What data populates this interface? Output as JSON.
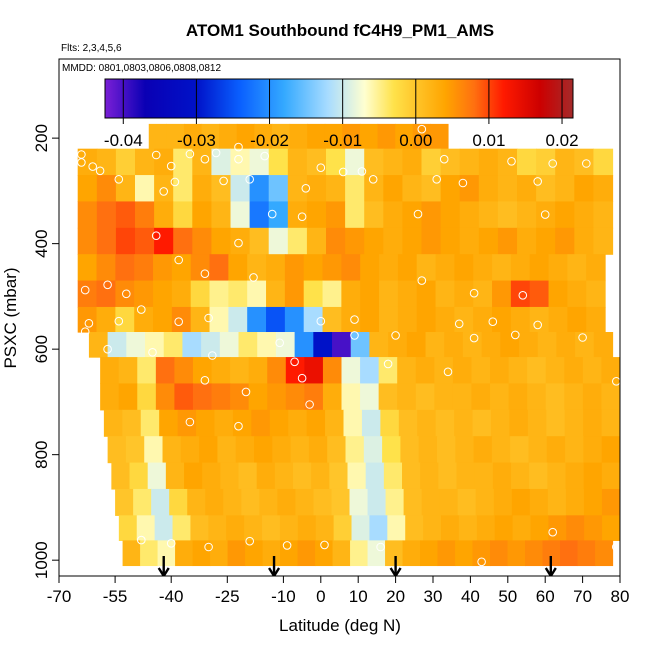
{
  "chart_data": {
    "type": "heatmap",
    "title": "ATOM1 Southbound fC4H9_PM1_AMS",
    "subtitle_flights": "Flts: 2,3,4,5,6",
    "subtitle_dates": "MMDD: 0801,0803,0806,0808,0812",
    "xlabel": "Latitude (deg N)",
    "ylabel": "PSXC (mbar)",
    "xlim": [
      -70,
      80
    ],
    "ylim": [
      1030,
      50
    ],
    "x_ticks": [
      -70,
      -55,
      -40,
      -25,
      -10,
      0,
      10,
      20,
      30,
      40,
      50,
      60,
      70,
      80
    ],
    "x_tick_labels": [
      "-70",
      "-55",
      "-40",
      "-25",
      "-10",
      "0",
      "10",
      "20",
      "30",
      "40",
      "50",
      "60",
      "70",
      "80"
    ],
    "y_ticks": [
      200,
      400,
      600,
      800,
      1000
    ],
    "y_tick_labels": [
      "200",
      "400",
      "600",
      "800",
      "1000"
    ],
    "colorbar": {
      "min": -0.0425,
      "max": 0.0215,
      "ticks": [
        -0.04,
        -0.03,
        -0.02,
        -0.01,
        0.0,
        0.01,
        0.02
      ],
      "tick_labels": [
        "-0.04",
        "-0.03",
        "-0.02",
        "-0.01",
        "0.00",
        "0.01",
        "0.02"
      ],
      "stops": [
        {
          "v": -0.0425,
          "c": "#7a1fd6"
        },
        {
          "v": -0.037,
          "c": "#0a00b4"
        },
        {
          "v": -0.03,
          "c": "#0012c8"
        },
        {
          "v": -0.024,
          "c": "#0a60ff"
        },
        {
          "v": -0.018,
          "c": "#34a9ff"
        },
        {
          "v": -0.012,
          "c": "#a8dcff"
        },
        {
          "v": -0.007,
          "c": "#ffffd0"
        },
        {
          "v": -0.003,
          "c": "#ffe24a"
        },
        {
          "v": 0.0,
          "c": "#ffc52a"
        },
        {
          "v": 0.004,
          "c": "#ffa500"
        },
        {
          "v": 0.008,
          "c": "#ff7010"
        },
        {
          "v": 0.012,
          "c": "#ff1a00"
        },
        {
          "v": 0.017,
          "c": "#cc0000"
        },
        {
          "v": 0.0215,
          "c": "#a52a2a"
        }
      ]
    },
    "arrow_latitudes": [
      -42,
      -12.5,
      20,
      61.5
    ],
    "layers": [
      {
        "p": 195,
        "lat0": -46,
        "lat1": 34,
        "v": [
          0.002,
          0.002,
          0.003,
          0.002,
          0.003,
          0.004,
          0.003,
          0.002,
          0.003,
          0.004,
          0.004,
          0.005,
          0.004,
          0.005,
          0.004,
          0.005,
          0.005
        ]
      },
      {
        "p": 245,
        "lat0": -65,
        "lat1": 78,
        "v": [
          0.003,
          0.002,
          -0.001,
          0.002,
          0.003,
          -0.004,
          0.002,
          -0.009,
          -0.006,
          -0.008,
          -0.003,
          0.002,
          0.001,
          -0.003,
          -0.008,
          0.001,
          0.002,
          0.003,
          -0.001,
          0.001,
          0.002,
          0.003,
          0.002,
          -0.002,
          -0.001,
          0.002,
          0.001,
          -0.002
        ]
      },
      {
        "p": 295,
        "lat0": -65,
        "lat1": 78,
        "v": [
          0.004,
          0.006,
          0.002,
          -0.006,
          0.002,
          -0.004,
          0.003,
          0.001,
          -0.01,
          -0.02,
          -0.015,
          0.002,
          0.003,
          0.002,
          -0.004,
          0.002,
          0.004,
          0.002,
          0.001,
          0.004,
          0.005,
          0.003,
          0.002,
          0.003,
          0.001,
          0.002,
          0.004,
          0.003
        ]
      },
      {
        "p": 345,
        "lat0": -65,
        "lat1": 78,
        "v": [
          0.006,
          0.008,
          0.009,
          0.007,
          0.003,
          -0.002,
          0.004,
          0.002,
          -0.008,
          -0.022,
          -0.018,
          0.003,
          0.004,
          0.005,
          -0.004,
          0.001,
          0.003,
          0.004,
          0.005,
          0.004,
          0.003,
          0.002,
          0.001,
          0.002,
          0.003,
          0.004,
          0.003,
          0.002
        ]
      },
      {
        "p": 395,
        "lat0": -65,
        "lat1": 78,
        "v": [
          0.006,
          0.008,
          0.01,
          0.009,
          0.012,
          0.008,
          0.006,
          0.004,
          0.003,
          0.001,
          -0.008,
          -0.004,
          0.002,
          0.006,
          0.005,
          0.004,
          0.003,
          0.004,
          0.005,
          0.004,
          0.003,
          0.004,
          0.005,
          0.003,
          0.004,
          0.005,
          0.003,
          0.002
        ]
      },
      {
        "p": 445,
        "lat0": -65,
        "lat1": 76,
        "v": [
          0.004,
          0.006,
          0.008,
          0.007,
          0.005,
          0.004,
          0.006,
          0.008,
          0.004,
          0.002,
          0.003,
          0.005,
          0.004,
          0.005,
          0.006,
          0.004,
          0.003,
          0.004,
          0.002,
          0.003,
          0.004,
          0.003,
          0.002,
          0.003,
          0.004,
          0.003,
          0.002,
          0.003
        ]
      },
      {
        "p": 495,
        "lat0": -65,
        "lat1": 76,
        "v": [
          0.007,
          0.008,
          0.006,
          0.005,
          0.004,
          0.003,
          -0.002,
          -0.005,
          -0.004,
          -0.006,
          0.002,
          0.005,
          -0.003,
          -0.005,
          0.003,
          0.004,
          0.002,
          0.003,
          0.004,
          0.002,
          0.003,
          0.002,
          0.005,
          0.01,
          0.009,
          0.004,
          0.003,
          0.002
        ]
      },
      {
        "p": 545,
        "lat0": -65,
        "lat1": 76,
        "v": [
          0.005,
          0.003,
          -0.002,
          0.003,
          0.004,
          0.006,
          0.002,
          -0.006,
          -0.01,
          -0.02,
          -0.025,
          -0.02,
          -0.012,
          0.001,
          0.003,
          0.004,
          0.002,
          0.003,
          0.004,
          0.003,
          0.002,
          0.003,
          0.004,
          0.003,
          0.002,
          0.003,
          0.004,
          0.003
        ]
      },
      {
        "p": 590,
        "lat0": -62,
        "lat1": 78,
        "v": [
          0.002,
          -0.01,
          -0.008,
          -0.006,
          -0.004,
          -0.012,
          -0.01,
          -0.008,
          -0.004,
          -0.006,
          -0.008,
          -0.02,
          -0.03,
          -0.04,
          -0.015,
          0.002,
          0.003,
          0.004,
          0.002,
          0.003,
          0.002,
          0.003,
          0.004,
          0.003,
          0.002,
          0.003,
          0.002,
          0.003
        ]
      },
      {
        "p": 640,
        "lat0": -59,
        "lat1": 80,
        "v": [
          0.003,
          0.002,
          -0.004,
          0.008,
          0.006,
          0.004,
          0.003,
          0.002,
          0.003,
          0.006,
          0.012,
          0.014,
          0.006,
          -0.008,
          -0.012,
          -0.004,
          0.002,
          0.003,
          0.002,
          0.003,
          0.002,
          0.003,
          0.002,
          0.001,
          0.002,
          0.003,
          0.002,
          0.003
        ]
      },
      {
        "p": 690,
        "lat0": -59,
        "lat1": 80,
        "v": [
          0.003,
          0.004,
          -0.002,
          0.006,
          0.009,
          0.008,
          0.007,
          0.006,
          0.004,
          0.005,
          0.006,
          0.007,
          0.003,
          -0.006,
          -0.008,
          0.001,
          0.002,
          0.001,
          0.002,
          0.002,
          0.003,
          0.002,
          0.003,
          0.002,
          0.001,
          0.002,
          0.003,
          0.002
        ]
      },
      {
        "p": 740,
        "lat0": -58,
        "lat1": 80,
        "v": [
          0.002,
          0.001,
          -0.004,
          0.004,
          0.005,
          0.004,
          0.003,
          0.004,
          0.005,
          0.004,
          0.003,
          0.004,
          0.002,
          -0.006,
          -0.01,
          -0.002,
          0.001,
          0.002,
          0.001,
          0.002,
          0.001,
          0.002,
          0.003,
          0.002,
          0.001,
          0.002,
          0.003,
          0.002
        ]
      },
      {
        "p": 790,
        "lat0": -57,
        "lat1": 80,
        "v": [
          0.001,
          0.0,
          -0.006,
          0.002,
          0.003,
          0.004,
          0.002,
          0.003,
          0.004,
          0.003,
          0.002,
          0.003,
          0.001,
          -0.005,
          -0.009,
          -0.003,
          0.001,
          0.002,
          0.001,
          0.002,
          0.003,
          0.002,
          0.001,
          0.002,
          0.003,
          0.002,
          0.003,
          0.004
        ]
      },
      {
        "p": 840,
        "lat0": -56,
        "lat1": 80,
        "v": [
          0.001,
          -0.002,
          -0.008,
          0.002,
          0.004,
          0.003,
          0.002,
          0.001,
          0.003,
          0.002,
          0.001,
          0.002,
          0.0,
          -0.006,
          -0.01,
          -0.004,
          0.001,
          0.002,
          0.001,
          0.002,
          0.002,
          0.003,
          0.002,
          0.001,
          0.002,
          0.003,
          0.004,
          0.003
        ]
      },
      {
        "p": 890,
        "lat0": -55,
        "lat1": 80,
        "v": [
          0.0,
          -0.004,
          -0.01,
          -0.002,
          0.002,
          0.003,
          0.002,
          0.001,
          0.002,
          0.003,
          0.002,
          0.001,
          0.0,
          -0.008,
          -0.01,
          -0.005,
          0.001,
          0.002,
          0.002,
          0.001,
          0.002,
          0.003,
          0.004,
          0.003,
          0.002,
          0.003,
          0.004,
          0.005
        ]
      },
      {
        "p": 940,
        "lat0": -54,
        "lat1": 80,
        "v": [
          -0.002,
          -0.006,
          -0.01,
          -0.004,
          0.001,
          0.002,
          0.003,
          0.002,
          0.001,
          0.002,
          0.003,
          0.002,
          -0.001,
          -0.009,
          -0.012,
          -0.006,
          0.001,
          0.002,
          0.003,
          0.002,
          0.003,
          0.004,
          0.003,
          0.004,
          0.005,
          0.006,
          0.005,
          0.004
        ]
      },
      {
        "p": 985,
        "lat0": -53,
        "lat1": 78,
        "v": [
          0.002,
          -0.004,
          -0.006,
          0.003,
          0.004,
          0.003,
          0.005,
          0.004,
          0.003,
          0.004,
          0.005,
          0.004,
          0.002,
          -0.005,
          -0.008,
          0.001,
          0.003,
          0.004,
          0.005,
          0.004,
          0.005,
          0.006,
          0.005,
          0.006,
          0.007,
          0.008,
          0.007,
          0.006
        ]
      }
    ],
    "points": [
      [
        27,
        183
      ],
      [
        -22,
        217
      ],
      [
        -28,
        228
      ],
      [
        -35,
        230
      ],
      [
        -44,
        232
      ],
      [
        -64,
        231
      ],
      [
        -64,
        246
      ],
      [
        -61,
        254
      ],
      [
        -59,
        262
      ],
      [
        -54,
        278
      ],
      [
        -40,
        253
      ],
      [
        -31,
        240
      ],
      [
        -22,
        240
      ],
      [
        -15,
        234
      ],
      [
        0,
        256
      ],
      [
        6,
        264
      ],
      [
        11,
        263
      ],
      [
        33,
        240
      ],
      [
        51,
        244
      ],
      [
        62,
        248
      ],
      [
        71,
        248
      ],
      [
        -39,
        283
      ],
      [
        -26,
        281
      ],
      [
        -19,
        278
      ],
      [
        -4,
        295
      ],
      [
        14,
        278
      ],
      [
        31,
        278
      ],
      [
        38,
        285
      ],
      [
        58,
        282
      ],
      [
        -42,
        301
      ],
      [
        -13,
        344
      ],
      [
        -5,
        349
      ],
      [
        26,
        344
      ],
      [
        60,
        345
      ],
      [
        -44,
        385
      ],
      [
        -22,
        399
      ],
      [
        -38,
        431
      ],
      [
        -31,
        457
      ],
      [
        -18,
        464
      ],
      [
        27,
        470
      ],
      [
        41,
        494
      ],
      [
        54,
        498
      ],
      [
        -57,
        478
      ],
      [
        -63,
        488
      ],
      [
        -52,
        495
      ],
      [
        -48,
        525
      ],
      [
        -54,
        547
      ],
      [
        -38,
        548
      ],
      [
        -30,
        541
      ],
      [
        0,
        547
      ],
      [
        9,
        544
      ],
      [
        37,
        552
      ],
      [
        46,
        548
      ],
      [
        58,
        554
      ],
      [
        -62,
        551
      ],
      [
        -63,
        567
      ],
      [
        -11,
        588
      ],
      [
        9,
        574
      ],
      [
        20,
        574
      ],
      [
        41,
        579
      ],
      [
        52,
        573
      ],
      [
        70,
        578
      ],
      [
        -57,
        600
      ],
      [
        -45,
        606
      ],
      [
        -29,
        612
      ],
      [
        -7,
        624
      ],
      [
        18,
        628
      ],
      [
        34,
        643
      ],
      [
        -31,
        659
      ],
      [
        79,
        661
      ],
      [
        -5,
        655
      ],
      [
        -20,
        681
      ],
      [
        -3,
        705
      ],
      [
        -35,
        738
      ],
      [
        -22,
        746
      ],
      [
        -48,
        962
      ],
      [
        -40,
        968
      ],
      [
        -30,
        975
      ],
      [
        -19,
        964
      ],
      [
        -9,
        972
      ],
      [
        1,
        971
      ],
      [
        16,
        975
      ],
      [
        43,
        1003
      ],
      [
        62,
        947
      ],
      [
        79,
        975
      ]
    ]
  }
}
